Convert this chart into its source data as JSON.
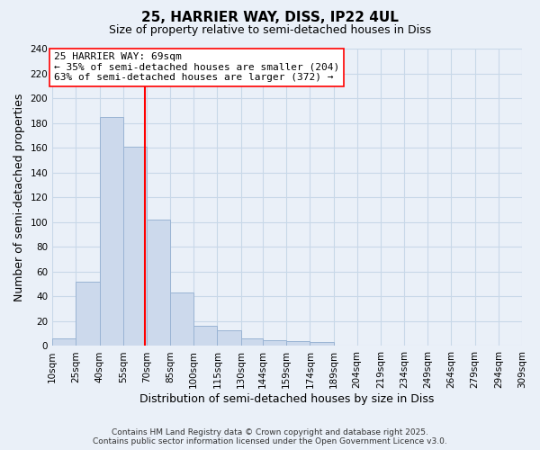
{
  "title": "25, HARRIER WAY, DISS, IP22 4UL",
  "subtitle": "Size of property relative to semi-detached houses in Diss",
  "xlabel": "Distribution of semi-detached houses by size in Diss",
  "ylabel": "Number of semi-detached properties",
  "bar_edges": [
    10,
    25,
    40,
    55,
    70,
    85,
    100,
    115,
    130,
    144,
    159,
    174,
    189,
    204,
    219,
    234,
    249,
    264,
    279,
    294,
    309
  ],
  "bar_heights": [
    6,
    52,
    185,
    161,
    102,
    43,
    16,
    13,
    6,
    5,
    4,
    3,
    0,
    0,
    0,
    0,
    0,
    0,
    0,
    0
  ],
  "bar_color": "#ccd9ec",
  "bar_edge_color": "#9ab4d4",
  "property_line_x": 69,
  "property_line_color": "red",
  "annotation_title": "25 HARRIER WAY: 69sqm",
  "annotation_line2": "← 35% of semi-detached houses are smaller (204)",
  "annotation_line3": "63% of semi-detached houses are larger (372) →",
  "annotation_box_color": "white",
  "annotation_box_edge_color": "red",
  "ylim": [
    0,
    240
  ],
  "yticks": [
    0,
    20,
    40,
    60,
    80,
    100,
    120,
    140,
    160,
    180,
    200,
    220,
    240
  ],
  "tick_labels": [
    "10sqm",
    "25sqm",
    "40sqm",
    "55sqm",
    "70sqm",
    "85sqm",
    "100sqm",
    "115sqm",
    "130sqm",
    "144sqm",
    "159sqm",
    "174sqm",
    "189sqm",
    "204sqm",
    "219sqm",
    "234sqm",
    "249sqm",
    "264sqm",
    "279sqm",
    "294sqm",
    "309sqm"
  ],
  "grid_color": "#c8d8e8",
  "background_color": "#eaf0f8",
  "footer_line1": "Contains HM Land Registry data © Crown copyright and database right 2025.",
  "footer_line2": "Contains public sector information licensed under the Open Government Licence v3.0.",
  "title_fontsize": 11,
  "subtitle_fontsize": 9,
  "axis_label_fontsize": 9,
  "tick_fontsize": 7.5,
  "annotation_fontsize": 8,
  "footer_fontsize": 6.5
}
